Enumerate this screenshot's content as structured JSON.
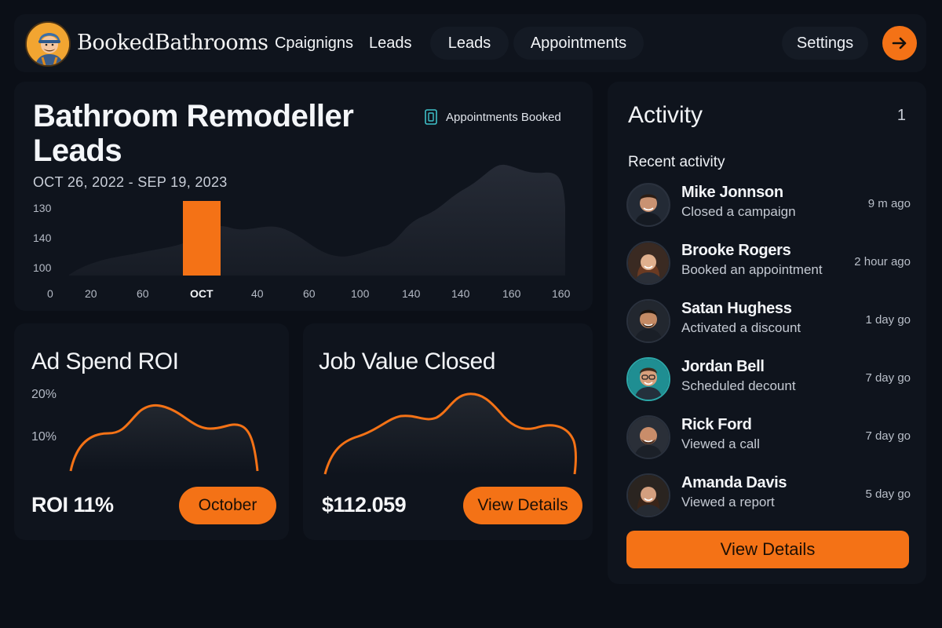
{
  "app": {
    "brand": "BookedBathrooms",
    "accent": "#f47216"
  },
  "nav": {
    "items": [
      "Cpaignigns",
      "Leads",
      "Leads",
      "Appointments"
    ],
    "settings": "Settings",
    "go_icon": "arrow-right-icon"
  },
  "leads_card": {
    "title": "Bathroom Remodeller Leads",
    "date_range": "OCT 26, 2022 - SEP 19, 2023",
    "badge": "Appointments Booked",
    "badge_icon": "document-icon"
  },
  "chart_data": [
    {
      "type": "area",
      "y_ticks": [
        "130",
        "140",
        "100"
      ],
      "x_ticks": [
        "0",
        "20",
        "60",
        "OCT",
        "40",
        "60",
        "100",
        "140",
        "140",
        "160",
        "160"
      ],
      "highlight_bar": {
        "category": "OCT",
        "color": "#f47216"
      },
      "area_color": "#1f2430"
    },
    {
      "type": "area",
      "title": "Ad Spend ROI",
      "y_ticks": [
        "20%",
        "10%"
      ],
      "line_color": "#f47216"
    },
    {
      "type": "area",
      "title": "Job Value Closed",
      "line_color": "#f47216"
    }
  ],
  "roi_card": {
    "title": "Ad Spend ROI",
    "value": "ROI 11%",
    "button": "October"
  },
  "job_card": {
    "title": "Job Value Closed",
    "value": "$112.059",
    "button": "View Details"
  },
  "activity": {
    "title": "Activity",
    "count": "1",
    "subtitle": "Recent activity",
    "items": [
      {
        "name": "Mike Jonnson",
        "desc": "Closed a campaign",
        "time": "9 m ago"
      },
      {
        "name": "Brooke Rogers",
        "desc": "Booked an appointment",
        "time": "2 hour ago"
      },
      {
        "name": "Satan Hughess",
        "desc": "Activated a discount",
        "time": "1 day go"
      },
      {
        "name": "Jordan Bell",
        "desc": "Scheduled decount",
        "time": "7 day go"
      },
      {
        "name": "Rick Ford",
        "desc": "Viewed a call",
        "time": "7 day go"
      },
      {
        "name": "Amanda Davis",
        "desc": "Viewed a report",
        "time": "5 day go"
      }
    ],
    "button": "View Details"
  }
}
